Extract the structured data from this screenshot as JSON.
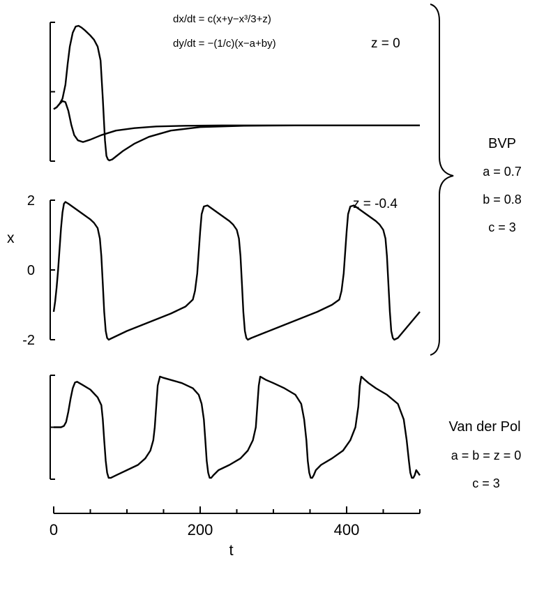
{
  "equations": {
    "dx": "dx/dt = c(x+y−x³/3+z)",
    "dy": "dy/dt = −(1/c)(x−a+by)"
  },
  "bvp": {
    "name": "BVP",
    "a": "a = 0.7",
    "b": "b = 0.8",
    "c": "c = 3"
  },
  "vdp": {
    "name": "Van der Pol",
    "params": "a = b = z = 0",
    "c": "c = 3"
  },
  "colors": {
    "ink": "#000000",
    "background": "#ffffff"
  },
  "chart_data": [
    {
      "type": "line",
      "panel": "top",
      "annotation": "z = 0",
      "xlim": [
        0,
        500
      ],
      "ylim": [
        -2,
        2
      ],
      "yticks": [
        -2,
        0,
        2
      ],
      "grid": false,
      "series": [
        {
          "x": [
            0,
            4,
            8,
            12,
            16,
            19,
            22,
            26,
            30,
            34,
            38,
            42,
            46,
            50,
            55,
            60,
            64,
            67,
            70,
            72,
            74,
            76,
            80,
            86,
            95,
            110,
            130,
            160,
            200,
            260,
            330,
            400,
            500
          ],
          "y": [
            -0.5,
            -0.45,
            -0.35,
            -0.2,
            0.2,
            0.8,
            1.3,
            1.7,
            1.88,
            1.9,
            1.85,
            1.78,
            1.7,
            1.62,
            1.5,
            1.3,
            0.9,
            -0.2,
            -1.4,
            -1.85,
            -1.95,
            -1.98,
            -1.95,
            -1.85,
            -1.7,
            -1.5,
            -1.3,
            -1.12,
            -1.02,
            -0.98,
            -0.97,
            -0.97,
            -0.97
          ]
        },
        {
          "x": [
            0,
            4,
            8,
            12,
            16,
            20,
            24,
            28,
            33,
            40,
            50,
            65,
            85,
            110,
            140,
            180,
            230,
            300,
            400,
            500
          ],
          "y": [
            -0.5,
            -0.45,
            -0.35,
            -0.27,
            -0.3,
            -0.55,
            -0.95,
            -1.25,
            -1.4,
            -1.45,
            -1.38,
            -1.25,
            -1.12,
            -1.05,
            -1.0,
            -0.98,
            -0.97,
            -0.97,
            -0.97,
            -0.97
          ]
        }
      ]
    },
    {
      "type": "line",
      "panel": "middle",
      "annotation": "z = -0.4",
      "ylabel": "x",
      "xlim": [
        0,
        500
      ],
      "ylim": [
        -2,
        2
      ],
      "yticks": [
        -2,
        0,
        2
      ],
      "ytick_labels": [
        "-2",
        "0",
        "2"
      ],
      "grid": false,
      "series": [
        {
          "x": [
            0,
            2,
            4,
            6,
            8,
            10,
            12,
            14,
            16,
            20,
            30,
            40,
            50,
            55,
            60,
            63,
            65,
            67,
            69,
            71,
            73,
            75,
            80,
            100,
            130,
            160,
            180,
            190,
            193,
            196,
            198,
            200,
            202,
            205,
            210,
            220,
            230,
            240,
            245,
            250,
            253,
            255,
            257,
            259,
            261,
            263,
            265,
            270,
            300,
            330,
            360,
            380,
            390,
            393,
            396,
            398,
            400,
            402,
            405,
            410,
            420,
            430,
            440,
            445,
            450,
            453,
            455,
            457,
            459,
            461,
            463,
            465,
            470,
            500
          ],
          "y": [
            -1.2,
            -0.9,
            -0.5,
            0,
            0.6,
            1.2,
            1.65,
            1.9,
            1.95,
            1.9,
            1.75,
            1.6,
            1.45,
            1.35,
            1.2,
            0.9,
            0.4,
            -0.4,
            -1.2,
            -1.75,
            -1.95,
            -2.0,
            -1.95,
            -1.75,
            -1.5,
            -1.25,
            -1.05,
            -0.85,
            -0.6,
            -0.1,
            0.5,
            1.1,
            1.6,
            1.82,
            1.85,
            1.7,
            1.55,
            1.4,
            1.3,
            1.15,
            0.9,
            0.4,
            -0.4,
            -1.2,
            -1.75,
            -1.95,
            -2.0,
            -1.95,
            -1.7,
            -1.45,
            -1.2,
            -1.0,
            -0.85,
            -0.6,
            -0.1,
            0.5,
            1.1,
            1.6,
            1.82,
            1.85,
            1.7,
            1.55,
            1.4,
            1.3,
            1.15,
            0.9,
            0.4,
            -0.4,
            -1.2,
            -1.75,
            -1.95,
            -2.0,
            -1.95,
            -1.2
          ]
        }
      ]
    },
    {
      "type": "line",
      "panel": "bottom",
      "xlim": [
        0,
        500
      ],
      "ylim": [
        -2,
        2
      ],
      "yticks": [
        -2,
        0,
        2
      ],
      "grid": false,
      "series": [
        {
          "x": [
            0,
            5,
            10,
            14,
            17,
            20,
            23,
            26,
            29,
            32,
            35,
            40,
            50,
            60,
            65,
            67,
            69,
            71,
            73,
            75,
            78,
            85,
            100,
            115,
            125,
            132,
            136,
            138,
            140,
            142,
            145,
            150,
            160,
            175,
            190,
            198,
            202,
            205,
            207,
            209,
            211,
            213,
            215,
            218,
            225,
            240,
            255,
            265,
            272,
            276,
            278,
            280,
            282,
            285,
            290,
            300,
            315,
            330,
            338,
            342,
            345,
            347,
            349,
            351,
            353,
            355,
            358,
            365,
            380,
            395,
            405,
            412,
            416,
            418,
            420,
            422,
            425,
            430,
            440,
            455,
            470,
            478,
            482,
            485,
            487,
            489,
            491,
            493,
            495,
            500
          ],
          "y": [
            0,
            0,
            0,
            0.05,
            0.2,
            0.6,
            1.1,
            1.5,
            1.72,
            1.75,
            1.7,
            1.62,
            1.45,
            1.15,
            0.85,
            0.3,
            -0.5,
            -1.3,
            -1.75,
            -1.95,
            -1.95,
            -1.85,
            -1.65,
            -1.45,
            -1.2,
            -0.9,
            -0.5,
            0,
            0.8,
            1.6,
            1.95,
            1.9,
            1.82,
            1.7,
            1.5,
            1.25,
            0.9,
            0.3,
            -0.5,
            -1.3,
            -1.75,
            -1.95,
            -1.95,
            -1.85,
            -1.65,
            -1.45,
            -1.2,
            -0.9,
            -0.5,
            0,
            0.8,
            1.6,
            1.95,
            1.9,
            1.82,
            1.7,
            1.5,
            1.25,
            0.9,
            0.3,
            -0.5,
            -1.3,
            -1.75,
            -1.95,
            -1.95,
            -1.85,
            -1.65,
            -1.45,
            -1.2,
            -0.9,
            -0.5,
            0,
            0.8,
            1.6,
            1.95,
            1.9,
            1.82,
            1.7,
            1.5,
            1.25,
            0.9,
            0.3,
            -0.5,
            -1.3,
            -1.75,
            -1.95,
            -1.95,
            -1.85,
            -1.65,
            -1.85
          ]
        }
      ]
    }
  ],
  "x_axis": {
    "label": "t",
    "xlim": [
      0,
      500
    ],
    "ticks": [
      0,
      200,
      400
    ],
    "tick_labels": [
      "0",
      "200",
      "400"
    ]
  }
}
